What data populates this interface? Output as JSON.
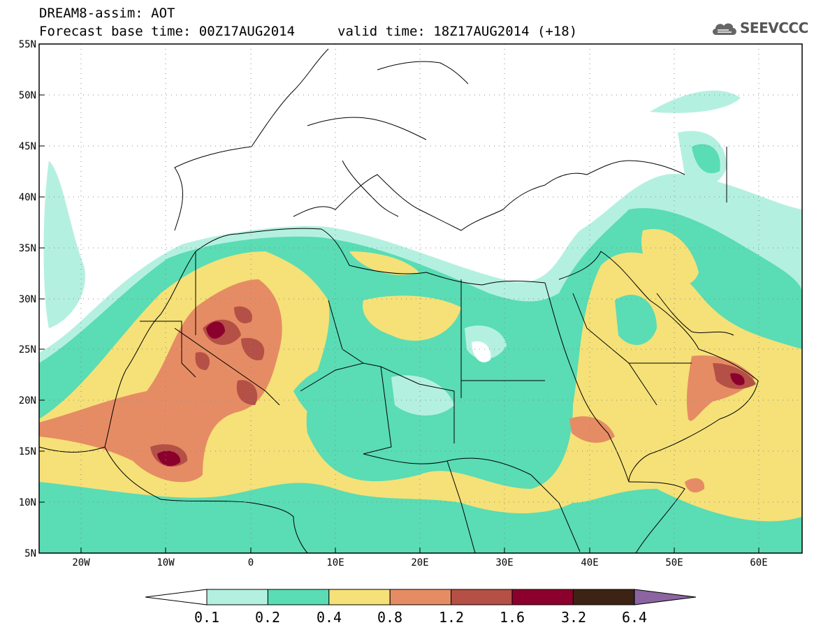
{
  "header": {
    "title": "DREAM8-assim: AOT",
    "base_time": "Forecast base time: 00Z17AUG2014",
    "valid_time": "valid time: 18Z17AUG2014 (+18)"
  },
  "logo": {
    "text": "SEEVCCC",
    "icon": "cloud-icon"
  },
  "map": {
    "background": "#ffffff",
    "border_color": "#000000",
    "lat_labels": [
      "55N",
      "50N",
      "45N",
      "40N",
      "35N",
      "30N",
      "25N",
      "20N",
      "15N",
      "10N",
      "5N"
    ],
    "lon_labels": [
      "20W",
      "10W",
      "0",
      "10E",
      "20E",
      "30E",
      "40E",
      "50E",
      "60E"
    ],
    "lat_range": [
      5,
      55
    ],
    "lon_range": [
      -25,
      65
    ]
  },
  "colorbar": {
    "labels": [
      "0.1",
      "0.2",
      "0.4",
      "0.8",
      "1.2",
      "1.6",
      "3.2",
      "6.4"
    ],
    "colors": [
      "#b4f0e0",
      "#5adcb4",
      "#f5e178",
      "#e68c64",
      "#b45046",
      "#8c002d",
      "#3c2314",
      "#8c64a0"
    ],
    "under_color": "#ffffff"
  }
}
